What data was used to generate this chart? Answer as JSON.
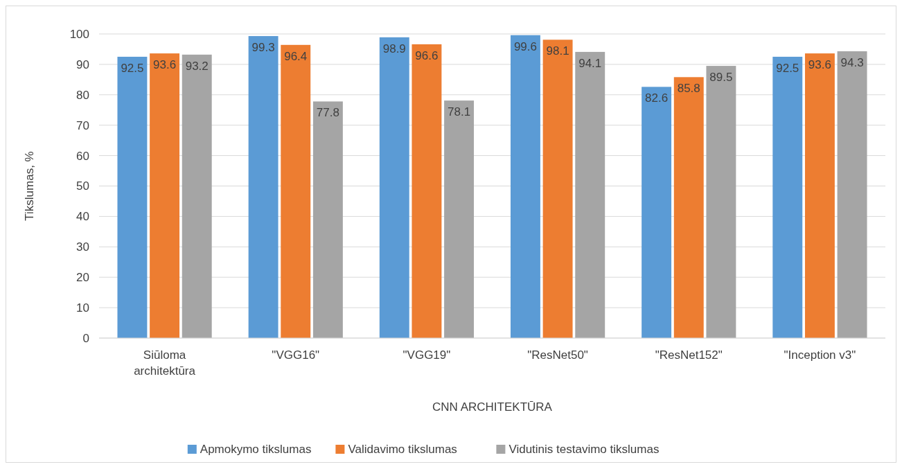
{
  "chart_data": {
    "type": "bar",
    "xlabel": "CNN ARCHITEKTŪRA",
    "ylabel": "Tikslumas, %",
    "categories": [
      "Siūloma architektūra",
      "\"VGG16\"",
      "\"VGG19\"",
      "\"ResNet50\"",
      "\"ResNet152\"",
      "\"Inception v3\""
    ],
    "series": [
      {
        "name": "Apmokymo tikslumas",
        "color": "#5b9bd5",
        "values": [
          92.5,
          99.3,
          98.9,
          99.6,
          82.6,
          92.5
        ]
      },
      {
        "name": "Validavimo tikslumas",
        "color": "#ed7d31",
        "values": [
          93.6,
          96.4,
          96.6,
          98.1,
          85.8,
          93.6
        ]
      },
      {
        "name": "Vidutinis testavimo tikslumas",
        "color": "#a5a5a5",
        "values": [
          93.2,
          77.8,
          78.1,
          94.1,
          89.5,
          94.3
        ]
      }
    ],
    "ylim": [
      0,
      100
    ],
    "yticks": [
      0,
      10,
      20,
      30,
      40,
      50,
      60,
      70,
      80,
      90,
      100
    ],
    "grid": "y",
    "legend": "bottom",
    "data_labels": true
  }
}
